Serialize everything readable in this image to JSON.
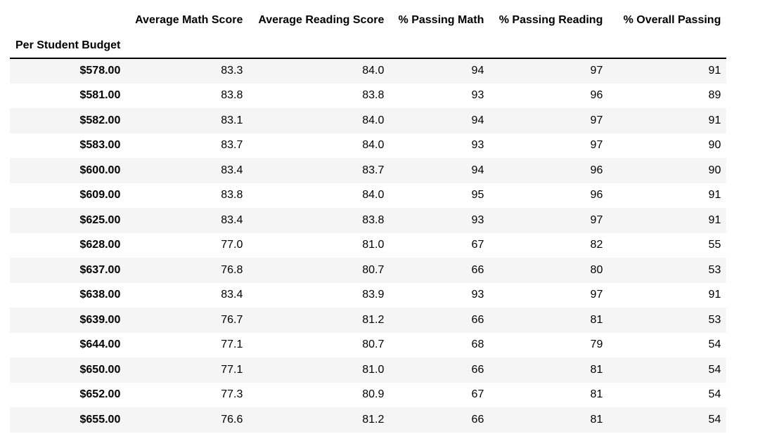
{
  "table": {
    "index_name": "Per Student Budget",
    "columns": [
      "Average Math Score",
      "Average Reading Score",
      "% Passing Math",
      "% Passing Reading",
      "% Overall Passing"
    ],
    "rows": [
      {
        "index": "$578.00",
        "cells": [
          "83.3",
          "84.0",
          "94",
          "97",
          "91"
        ]
      },
      {
        "index": "$581.00",
        "cells": [
          "83.8",
          "83.8",
          "93",
          "96",
          "89"
        ]
      },
      {
        "index": "$582.00",
        "cells": [
          "83.1",
          "84.0",
          "94",
          "97",
          "91"
        ]
      },
      {
        "index": "$583.00",
        "cells": [
          "83.7",
          "84.0",
          "93",
          "97",
          "90"
        ]
      },
      {
        "index": "$600.00",
        "cells": [
          "83.4",
          "83.7",
          "94",
          "96",
          "90"
        ]
      },
      {
        "index": "$609.00",
        "cells": [
          "83.8",
          "84.0",
          "95",
          "96",
          "91"
        ]
      },
      {
        "index": "$625.00",
        "cells": [
          "83.4",
          "83.8",
          "93",
          "97",
          "91"
        ]
      },
      {
        "index": "$628.00",
        "cells": [
          "77.0",
          "81.0",
          "67",
          "82",
          "55"
        ]
      },
      {
        "index": "$637.00",
        "cells": [
          "76.8",
          "80.7",
          "66",
          "80",
          "53"
        ]
      },
      {
        "index": "$638.00",
        "cells": [
          "83.4",
          "83.9",
          "93",
          "97",
          "91"
        ]
      },
      {
        "index": "$639.00",
        "cells": [
          "76.7",
          "81.2",
          "66",
          "81",
          "53"
        ]
      },
      {
        "index": "$644.00",
        "cells": [
          "77.1",
          "80.7",
          "68",
          "79",
          "54"
        ]
      },
      {
        "index": "$650.00",
        "cells": [
          "77.1",
          "81.0",
          "66",
          "81",
          "54"
        ]
      },
      {
        "index": "$652.00",
        "cells": [
          "77.3",
          "80.9",
          "67",
          "81",
          "54"
        ]
      },
      {
        "index": "$655.00",
        "cells": [
          "76.6",
          "81.2",
          "66",
          "81",
          "54"
        ]
      }
    ]
  }
}
